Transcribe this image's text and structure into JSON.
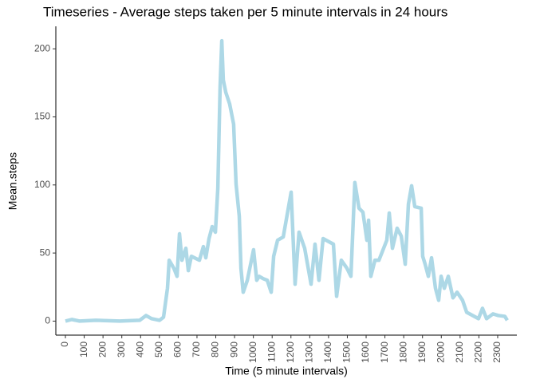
{
  "chart_data": {
    "type": "line",
    "title": "Timeseries - Average steps taken per 5 minute intervals in 24 hours",
    "x_label": "Time (5 minute intervals)",
    "y_label": "Mean.steps",
    "x": [
      0,
      34,
      76,
      161,
      289,
      395,
      429,
      458,
      501,
      522,
      543,
      552,
      577,
      594,
      607,
      620,
      641,
      654,
      670,
      713,
      734,
      747,
      764,
      781,
      798,
      811,
      823,
      832,
      840,
      853,
      874,
      895,
      908,
      925,
      934,
      946,
      968,
      1001,
      1018,
      1031,
      1052,
      1074,
      1095,
      1108,
      1129,
      1159,
      1201,
      1222,
      1243,
      1273,
      1307,
      1328,
      1349,
      1371,
      1426,
      1443,
      1468,
      1498,
      1519,
      1540,
      1562,
      1583,
      1604,
      1613,
      1625,
      1647,
      1668,
      1710,
      1723,
      1740,
      1765,
      1787,
      1808,
      1825,
      1842,
      1859,
      1893,
      1901,
      1914,
      1931,
      1948,
      1969,
      1986,
      1999,
      2016,
      2037,
      2062,
      2084,
      2113,
      2135,
      2198,
      2219,
      2241,
      2275,
      2304,
      2338,
      2351
    ],
    "series": [
      {
        "name": "Mean.steps",
        "color": "#add8e6",
        "values": [
          0,
          1.2,
          0,
          0.6,
          0,
          0.6,
          4.1,
          1.8,
          0.6,
          2.9,
          24.1,
          44.7,
          38.8,
          32.9,
          64.1,
          44.7,
          53.5,
          37.1,
          47.6,
          44.7,
          54.7,
          46.5,
          60.6,
          69.4,
          65.3,
          97.6,
          171.8,
          205.9,
          177.1,
          168.2,
          159.4,
          144.7,
          100.6,
          77.1,
          38.8,
          21.2,
          30,
          52.4,
          30,
          32.9,
          31.2,
          30,
          21.2,
          47.6,
          59.4,
          61.8,
          94.7,
          27.1,
          65.3,
          53.5,
          27.1,
          56.5,
          30,
          60.6,
          56.5,
          18.2,
          44.7,
          38.8,
          32.9,
          101.8,
          82.9,
          80,
          59.4,
          74.1,
          32.9,
          44.7,
          44.7,
          59.4,
          79.4,
          53.5,
          68.2,
          62.4,
          41.8,
          85.9,
          99.4,
          84.1,
          82.9,
          47.6,
          41.8,
          32.9,
          46.5,
          24.1,
          15.3,
          32.9,
          24.1,
          32.9,
          17.1,
          21.2,
          15.3,
          6.5,
          1.8,
          9.4,
          1.8,
          5.3,
          4.1,
          3.5,
          0.6
        ]
      }
    ],
    "xlim": [
      -51,
      2402
    ],
    "ylim": [
      -10.3,
      216.5
    ],
    "xticks": [
      0,
      100,
      200,
      300,
      400,
      500,
      600,
      700,
      800,
      900,
      1000,
      1100,
      1200,
      1300,
      1400,
      1500,
      1600,
      1700,
      1800,
      1900,
      2000,
      2100,
      2200,
      2300
    ],
    "yticks": [
      0,
      50,
      100,
      150,
      200
    ],
    "grid": false
  }
}
